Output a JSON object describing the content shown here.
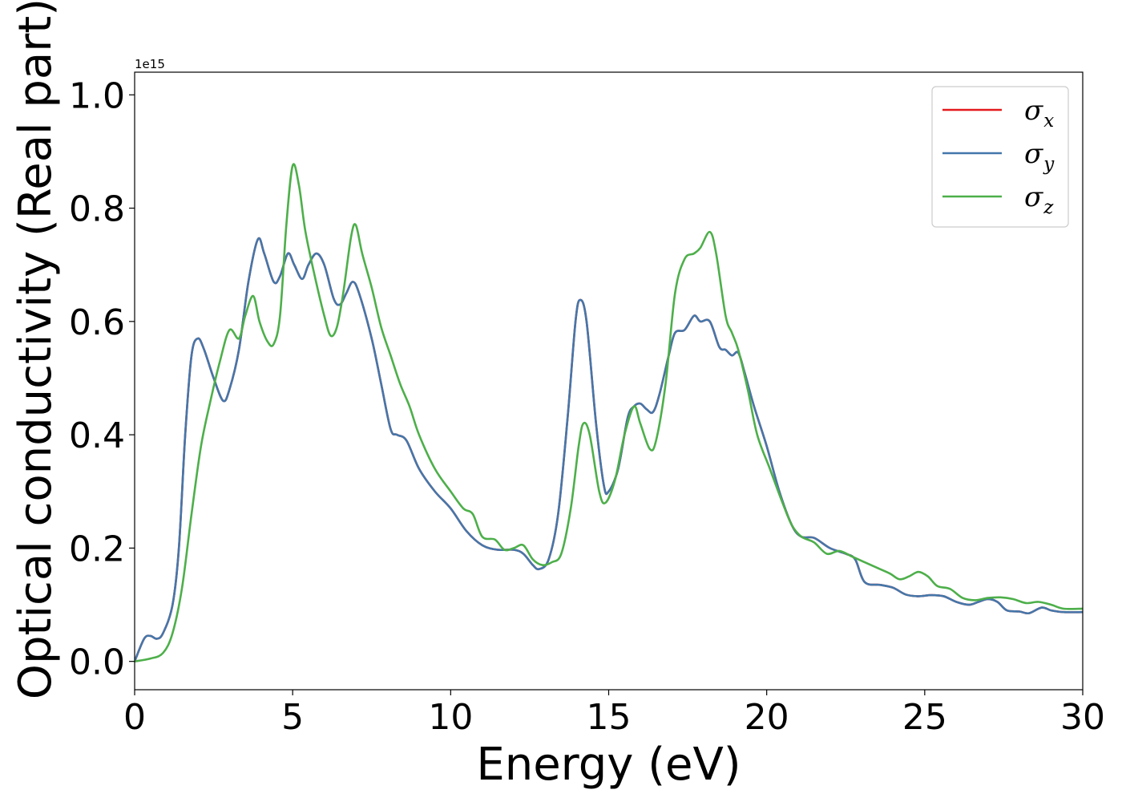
{
  "chart_data": {
    "type": "line",
    "xlabel": "Energy (eV)",
    "ylabel": "Optical conductivity (Real part)",
    "y_offset_text": "1e15",
    "xlim": [
      0,
      30
    ],
    "ylim": [
      -0.05,
      1.04
    ],
    "y_scale_factor": 1000000000000000.0,
    "xticks": [
      0,
      5,
      10,
      15,
      20,
      25,
      30
    ],
    "xtick_labels": [
      "0",
      "5",
      "10",
      "15",
      "20",
      "25",
      "30"
    ],
    "yticks": [
      0.0,
      0.2,
      0.4,
      0.6,
      0.8,
      1.0
    ],
    "ytick_labels": [
      "0.0",
      "0.2",
      "0.4",
      "0.6",
      "0.8",
      "1.0"
    ],
    "grid": false,
    "legend_position": "top-right",
    "series": [
      {
        "name": "σx",
        "symbol": "σ",
        "subscript": "x",
        "color": "#e41a1c",
        "points": [
          [
            0,
            0
          ],
          [
            0.3,
            0.04
          ],
          [
            0.5,
            0.045
          ],
          [
            0.7,
            0.04
          ],
          [
            0.9,
            0.05
          ],
          [
            1.2,
            0.1
          ],
          [
            1.4,
            0.2
          ],
          [
            1.6,
            0.4
          ],
          [
            1.8,
            0.54
          ],
          [
            2.0,
            0.57
          ],
          [
            2.2,
            0.55
          ],
          [
            2.5,
            0.5
          ],
          [
            2.8,
            0.46
          ],
          [
            3.0,
            0.48
          ],
          [
            3.3,
            0.55
          ],
          [
            3.6,
            0.67
          ],
          [
            3.9,
            0.745
          ],
          [
            4.1,
            0.72
          ],
          [
            4.4,
            0.67
          ],
          [
            4.6,
            0.68
          ],
          [
            4.85,
            0.72
          ],
          [
            5.05,
            0.7
          ],
          [
            5.3,
            0.675
          ],
          [
            5.5,
            0.7
          ],
          [
            5.75,
            0.72
          ],
          [
            6.0,
            0.7
          ],
          [
            6.3,
            0.64
          ],
          [
            6.5,
            0.63
          ],
          [
            6.7,
            0.65
          ],
          [
            6.9,
            0.67
          ],
          [
            7.1,
            0.65
          ],
          [
            7.5,
            0.57
          ],
          [
            7.8,
            0.49
          ],
          [
            8.1,
            0.41
          ],
          [
            8.3,
            0.4
          ],
          [
            8.6,
            0.39
          ],
          [
            9.0,
            0.34
          ],
          [
            9.5,
            0.3
          ],
          [
            10.0,
            0.27
          ],
          [
            10.5,
            0.23
          ],
          [
            11.0,
            0.205
          ],
          [
            11.5,
            0.197
          ],
          [
            12.0,
            0.197
          ],
          [
            12.3,
            0.19
          ],
          [
            12.6,
            0.17
          ],
          [
            12.8,
            0.163
          ],
          [
            13.1,
            0.18
          ],
          [
            13.4,
            0.26
          ],
          [
            13.7,
            0.43
          ],
          [
            13.95,
            0.6
          ],
          [
            14.1,
            0.638
          ],
          [
            14.3,
            0.6
          ],
          [
            14.6,
            0.42
          ],
          [
            14.85,
            0.31
          ],
          [
            15.0,
            0.3
          ],
          [
            15.3,
            0.34
          ],
          [
            15.6,
            0.43
          ],
          [
            15.8,
            0.45
          ],
          [
            16.0,
            0.455
          ],
          [
            16.2,
            0.445
          ],
          [
            16.4,
            0.44
          ],
          [
            16.6,
            0.47
          ],
          [
            16.9,
            0.54
          ],
          [
            17.1,
            0.58
          ],
          [
            17.4,
            0.585
          ],
          [
            17.7,
            0.61
          ],
          [
            17.9,
            0.6
          ],
          [
            18.2,
            0.6
          ],
          [
            18.5,
            0.555
          ],
          [
            18.7,
            0.55
          ],
          [
            18.9,
            0.54
          ],
          [
            19.1,
            0.545
          ],
          [
            19.3,
            0.51
          ],
          [
            19.6,
            0.45
          ],
          [
            20.0,
            0.38
          ],
          [
            20.4,
            0.3
          ],
          [
            20.8,
            0.24
          ],
          [
            21.1,
            0.22
          ],
          [
            21.5,
            0.218
          ],
          [
            22.0,
            0.2
          ],
          [
            22.5,
            0.19
          ],
          [
            22.8,
            0.18
          ],
          [
            23.1,
            0.14
          ],
          [
            23.6,
            0.135
          ],
          [
            24.0,
            0.13
          ],
          [
            24.4,
            0.118
          ],
          [
            24.8,
            0.115
          ],
          [
            25.2,
            0.117
          ],
          [
            25.6,
            0.115
          ],
          [
            26.0,
            0.105
          ],
          [
            26.4,
            0.1
          ],
          [
            26.7,
            0.105
          ],
          [
            27.0,
            0.11
          ],
          [
            27.3,
            0.105
          ],
          [
            27.6,
            0.09
          ],
          [
            28.0,
            0.088
          ],
          [
            28.3,
            0.085
          ],
          [
            28.7,
            0.095
          ],
          [
            29.0,
            0.09
          ],
          [
            29.4,
            0.087
          ],
          [
            30.0,
            0.087
          ]
        ]
      },
      {
        "name": "σy",
        "symbol": "σ",
        "subscript": "y",
        "color": "#4477aa",
        "points": [
          [
            0,
            0
          ],
          [
            0.3,
            0.04
          ],
          [
            0.5,
            0.045
          ],
          [
            0.7,
            0.04
          ],
          [
            0.9,
            0.05
          ],
          [
            1.2,
            0.1
          ],
          [
            1.4,
            0.2
          ],
          [
            1.6,
            0.4
          ],
          [
            1.8,
            0.54
          ],
          [
            2.0,
            0.57
          ],
          [
            2.2,
            0.55
          ],
          [
            2.5,
            0.5
          ],
          [
            2.8,
            0.46
          ],
          [
            3.0,
            0.48
          ],
          [
            3.3,
            0.55
          ],
          [
            3.6,
            0.67
          ],
          [
            3.9,
            0.745
          ],
          [
            4.1,
            0.72
          ],
          [
            4.4,
            0.67
          ],
          [
            4.6,
            0.68
          ],
          [
            4.85,
            0.72
          ],
          [
            5.05,
            0.7
          ],
          [
            5.3,
            0.675
          ],
          [
            5.5,
            0.7
          ],
          [
            5.75,
            0.72
          ],
          [
            6.0,
            0.7
          ],
          [
            6.3,
            0.64
          ],
          [
            6.5,
            0.63
          ],
          [
            6.7,
            0.65
          ],
          [
            6.9,
            0.67
          ],
          [
            7.1,
            0.65
          ],
          [
            7.5,
            0.57
          ],
          [
            7.8,
            0.49
          ],
          [
            8.1,
            0.41
          ],
          [
            8.3,
            0.4
          ],
          [
            8.6,
            0.39
          ],
          [
            9.0,
            0.34
          ],
          [
            9.5,
            0.3
          ],
          [
            10.0,
            0.27
          ],
          [
            10.5,
            0.23
          ],
          [
            11.0,
            0.205
          ],
          [
            11.5,
            0.197
          ],
          [
            12.0,
            0.197
          ],
          [
            12.3,
            0.19
          ],
          [
            12.6,
            0.17
          ],
          [
            12.8,
            0.163
          ],
          [
            13.1,
            0.18
          ],
          [
            13.4,
            0.26
          ],
          [
            13.7,
            0.43
          ],
          [
            13.95,
            0.6
          ],
          [
            14.1,
            0.638
          ],
          [
            14.3,
            0.6
          ],
          [
            14.6,
            0.42
          ],
          [
            14.85,
            0.31
          ],
          [
            15.0,
            0.3
          ],
          [
            15.3,
            0.34
          ],
          [
            15.6,
            0.43
          ],
          [
            15.8,
            0.45
          ],
          [
            16.0,
            0.455
          ],
          [
            16.2,
            0.445
          ],
          [
            16.4,
            0.44
          ],
          [
            16.6,
            0.47
          ],
          [
            16.9,
            0.54
          ],
          [
            17.1,
            0.58
          ],
          [
            17.4,
            0.585
          ],
          [
            17.7,
            0.61
          ],
          [
            17.9,
            0.6
          ],
          [
            18.2,
            0.6
          ],
          [
            18.5,
            0.555
          ],
          [
            18.7,
            0.55
          ],
          [
            18.9,
            0.54
          ],
          [
            19.1,
            0.545
          ],
          [
            19.3,
            0.51
          ],
          [
            19.6,
            0.45
          ],
          [
            20.0,
            0.38
          ],
          [
            20.4,
            0.3
          ],
          [
            20.8,
            0.24
          ],
          [
            21.1,
            0.22
          ],
          [
            21.5,
            0.218
          ],
          [
            22.0,
            0.2
          ],
          [
            22.5,
            0.19
          ],
          [
            22.8,
            0.18
          ],
          [
            23.1,
            0.14
          ],
          [
            23.6,
            0.135
          ],
          [
            24.0,
            0.13
          ],
          [
            24.4,
            0.118
          ],
          [
            24.8,
            0.115
          ],
          [
            25.2,
            0.117
          ],
          [
            25.6,
            0.115
          ],
          [
            26.0,
            0.105
          ],
          [
            26.4,
            0.1
          ],
          [
            26.7,
            0.105
          ],
          [
            27.0,
            0.11
          ],
          [
            27.3,
            0.105
          ],
          [
            27.6,
            0.09
          ],
          [
            28.0,
            0.088
          ],
          [
            28.3,
            0.085
          ],
          [
            28.7,
            0.095
          ],
          [
            29.0,
            0.09
          ],
          [
            29.4,
            0.087
          ],
          [
            30.0,
            0.087
          ]
        ]
      },
      {
        "name": "σz",
        "symbol": "σ",
        "subscript": "z",
        "color": "#4daf4a",
        "points": [
          [
            0,
            0
          ],
          [
            0.5,
            0.005
          ],
          [
            0.9,
            0.015
          ],
          [
            1.2,
            0.05
          ],
          [
            1.5,
            0.13
          ],
          [
            1.8,
            0.26
          ],
          [
            2.1,
            0.38
          ],
          [
            2.4,
            0.46
          ],
          [
            2.7,
            0.53
          ],
          [
            3.0,
            0.585
          ],
          [
            3.3,
            0.57
          ],
          [
            3.5,
            0.61
          ],
          [
            3.75,
            0.645
          ],
          [
            3.95,
            0.6
          ],
          [
            4.2,
            0.565
          ],
          [
            4.4,
            0.56
          ],
          [
            4.6,
            0.61
          ],
          [
            4.8,
            0.77
          ],
          [
            5.0,
            0.875
          ],
          [
            5.2,
            0.84
          ],
          [
            5.4,
            0.76
          ],
          [
            5.7,
            0.68
          ],
          [
            6.0,
            0.61
          ],
          [
            6.2,
            0.575
          ],
          [
            6.4,
            0.59
          ],
          [
            6.6,
            0.65
          ],
          [
            6.85,
            0.75
          ],
          [
            7.0,
            0.77
          ],
          [
            7.2,
            0.72
          ],
          [
            7.5,
            0.66
          ],
          [
            7.8,
            0.59
          ],
          [
            8.1,
            0.54
          ],
          [
            8.4,
            0.49
          ],
          [
            8.7,
            0.45
          ],
          [
            9.0,
            0.4
          ],
          [
            9.5,
            0.34
          ],
          [
            10.0,
            0.3
          ],
          [
            10.4,
            0.27
          ],
          [
            10.7,
            0.26
          ],
          [
            11.0,
            0.22
          ],
          [
            11.4,
            0.215
          ],
          [
            11.7,
            0.197
          ],
          [
            12.0,
            0.2
          ],
          [
            12.3,
            0.205
          ],
          [
            12.6,
            0.18
          ],
          [
            12.9,
            0.17
          ],
          [
            13.2,
            0.175
          ],
          [
            13.5,
            0.19
          ],
          [
            13.8,
            0.27
          ],
          [
            14.05,
            0.38
          ],
          [
            14.2,
            0.42
          ],
          [
            14.4,
            0.4
          ],
          [
            14.7,
            0.3
          ],
          [
            14.9,
            0.28
          ],
          [
            15.2,
            0.32
          ],
          [
            15.5,
            0.4
          ],
          [
            15.8,
            0.45
          ],
          [
            16.0,
            0.42
          ],
          [
            16.3,
            0.375
          ],
          [
            16.5,
            0.39
          ],
          [
            16.8,
            0.49
          ],
          [
            17.1,
            0.65
          ],
          [
            17.4,
            0.71
          ],
          [
            17.7,
            0.72
          ],
          [
            17.9,
            0.73
          ],
          [
            18.2,
            0.758
          ],
          [
            18.4,
            0.72
          ],
          [
            18.7,
            0.61
          ],
          [
            18.9,
            0.58
          ],
          [
            19.1,
            0.55
          ],
          [
            19.4,
            0.48
          ],
          [
            19.7,
            0.4
          ],
          [
            20.1,
            0.34
          ],
          [
            20.5,
            0.28
          ],
          [
            20.8,
            0.24
          ],
          [
            21.1,
            0.22
          ],
          [
            21.5,
            0.21
          ],
          [
            21.9,
            0.19
          ],
          [
            22.3,
            0.195
          ],
          [
            22.7,
            0.185
          ],
          [
            23.1,
            0.175
          ],
          [
            23.5,
            0.165
          ],
          [
            23.9,
            0.155
          ],
          [
            24.2,
            0.145
          ],
          [
            24.5,
            0.15
          ],
          [
            24.8,
            0.158
          ],
          [
            25.1,
            0.15
          ],
          [
            25.4,
            0.133
          ],
          [
            25.8,
            0.128
          ],
          [
            26.2,
            0.112
          ],
          [
            26.6,
            0.108
          ],
          [
            27.0,
            0.112
          ],
          [
            27.4,
            0.113
          ],
          [
            27.8,
            0.11
          ],
          [
            28.2,
            0.103
          ],
          [
            28.6,
            0.105
          ],
          [
            29.0,
            0.1
          ],
          [
            29.4,
            0.093
          ],
          [
            30.0,
            0.093
          ]
        ]
      }
    ]
  }
}
